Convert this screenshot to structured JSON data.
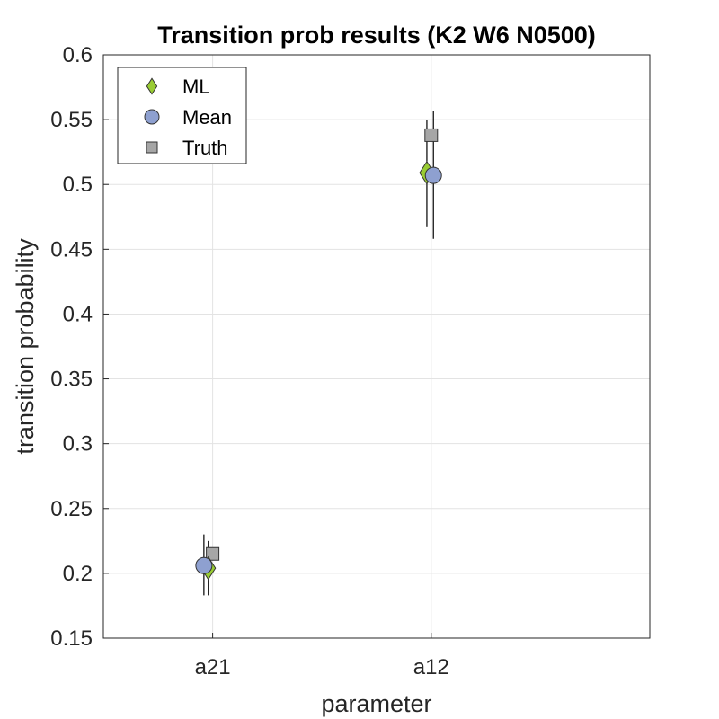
{
  "chart_data": {
    "type": "scatter",
    "title": "Transition prob results (K2 W6 N0500)",
    "xlabel": "parameter",
    "ylabel": "transition probability",
    "categories": [
      "a21",
      "a12"
    ],
    "xlim": [
      0.5,
      3.0
    ],
    "ylim": [
      0.15,
      0.6
    ],
    "yticks": [
      0.15,
      0.2,
      0.25,
      0.3,
      0.35,
      0.4,
      0.45,
      0.5,
      0.55,
      0.6
    ],
    "ytick_labels": [
      "0.15",
      "0.2",
      "0.25",
      "0.3",
      "0.35",
      "0.4",
      "0.45",
      "0.5",
      "0.55",
      "0.6"
    ],
    "grid": true,
    "legend_position": "top-left",
    "series": [
      {
        "name": "ML",
        "marker": "diamond",
        "color": "#99cc33",
        "x": [
          0.98,
          1.98
        ],
        "y": [
          0.204,
          0.509
        ],
        "err_low": [
          0.183,
          0.467
        ],
        "err_high": [
          0.225,
          0.55
        ]
      },
      {
        "name": "Mean",
        "marker": "circle",
        "color": "#8ea0d0",
        "x": [
          0.96,
          2.01
        ],
        "y": [
          0.206,
          0.507
        ],
        "err_low": [
          0.183,
          0.458
        ],
        "err_high": [
          0.23,
          0.557
        ]
      },
      {
        "name": "Truth",
        "marker": "square",
        "color": "#a6a6a6",
        "x": [
          1.0,
          2.0
        ],
        "y": [
          0.215,
          0.538
        ]
      }
    ]
  }
}
